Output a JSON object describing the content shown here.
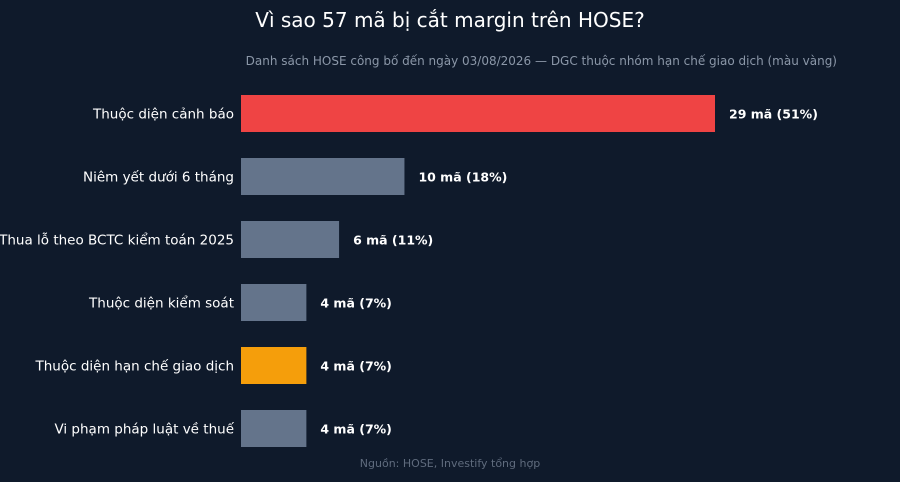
{
  "chart_data": {
    "type": "bar",
    "orientation": "horizontal",
    "title": "Vì sao 57 mã bị cắt margin trên HOSE?",
    "subtitle": "Danh sách HOSE công bố đến ngày 03/08/2026 — DGC thuộc nhóm hạn chế giao dịch (màu vàng)",
    "source": "Nguồn: HOSE, Investify tổng hợp",
    "categories": [
      "Thuộc diện cảnh báo",
      "Niêm yết dưới 6 tháng",
      "Thua lỗ theo BCTC kiểm toán 2025",
      "Thuộc diện kiểm soát",
      "Thuộc diện hạn chế giao dịch",
      "Vi phạm pháp luật về thuế"
    ],
    "values": [
      29,
      10,
      6,
      4,
      4,
      4
    ],
    "data_labels": [
      "29 mã (51%)",
      "10 mã (18%)",
      "6 mã (11%)",
      "4 mã (7%)",
      "4 mã (7%)",
      "4 mã (7%)"
    ],
    "bar_colors": [
      "#ef4444",
      "#64748b",
      "#64748b",
      "#64748b",
      "#f59e0b",
      "#64748b"
    ],
    "xlim": [
      0,
      29
    ],
    "grid": false,
    "legend": "none"
  },
  "colors": {
    "background": "#0f1a2b",
    "text": "#ffffff",
    "subtitle": "#8b97a8",
    "source": "#5f6b7d"
  }
}
